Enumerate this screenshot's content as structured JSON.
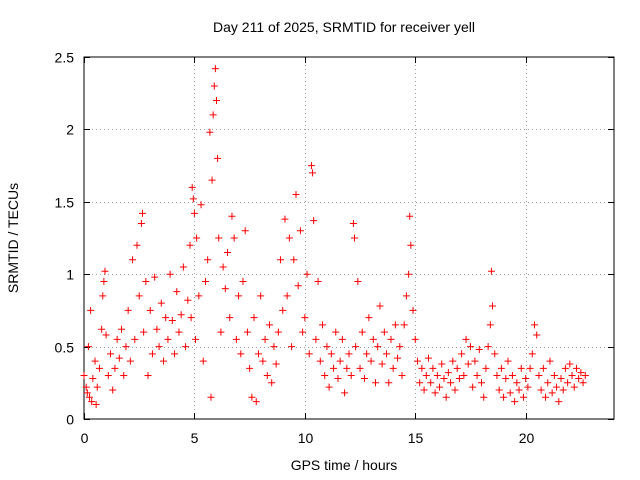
{
  "chart_data": {
    "type": "scatter",
    "title": "Day 211 of 2025, SRMTID for receiver yell",
    "xlabel": "GPS time / hours",
    "ylabel": "SRMTID / TECUs",
    "xlim": [
      0,
      24
    ],
    "ylim": [
      0,
      2.5
    ],
    "x_ticks": [
      0,
      5,
      10,
      15,
      20
    ],
    "x_tick_labels": [
      "0",
      "5",
      "10",
      "15",
      "20"
    ],
    "y_ticks": [
      0,
      0.5,
      1,
      1.5,
      2,
      2.5
    ],
    "y_tick_labels": [
      "0",
      "0.5",
      "1",
      "1.5",
      "2",
      "2.5"
    ],
    "grid": true,
    "marker": "plus",
    "color": "#ff0000",
    "series": [
      {
        "name": "SRMTID",
        "points": [
          [
            0.0,
            0.3
          ],
          [
            0.1,
            0.22
          ],
          [
            0.15,
            0.18
          ],
          [
            0.2,
            0.5
          ],
          [
            0.25,
            0.15
          ],
          [
            0.3,
            0.75
          ],
          [
            0.35,
            0.12
          ],
          [
            0.4,
            0.28
          ],
          [
            0.5,
            0.4
          ],
          [
            0.55,
            0.1
          ],
          [
            0.6,
            0.22
          ],
          [
            0.7,
            0.35
          ],
          [
            0.8,
            0.62
          ],
          [
            0.85,
            0.85
          ],
          [
            0.9,
            0.95
          ],
          [
            0.95,
            1.02
          ],
          [
            1.0,
            0.58
          ],
          [
            1.1,
            0.3
          ],
          [
            1.2,
            0.45
          ],
          [
            1.3,
            0.2
          ],
          [
            1.4,
            0.35
          ],
          [
            1.5,
            0.55
          ],
          [
            1.6,
            0.42
          ],
          [
            1.7,
            0.62
          ],
          [
            1.8,
            0.3
          ],
          [
            1.9,
            0.5
          ],
          [
            2.0,
            0.75
          ],
          [
            2.1,
            0.4
          ],
          [
            2.2,
            1.1
          ],
          [
            2.3,
            0.55
          ],
          [
            2.4,
            1.2
          ],
          [
            2.5,
            0.85
          ],
          [
            2.6,
            1.35
          ],
          [
            2.65,
            1.42
          ],
          [
            2.7,
            0.6
          ],
          [
            2.8,
            0.95
          ],
          [
            2.9,
            0.3
          ],
          [
            3.0,
            0.75
          ],
          [
            3.1,
            0.45
          ],
          [
            3.2,
            0.98
          ],
          [
            3.3,
            0.62
          ],
          [
            3.4,
            0.5
          ],
          [
            3.5,
            0.8
          ],
          [
            3.6,
            0.4
          ],
          [
            3.7,
            0.7
          ],
          [
            3.8,
            0.55
          ],
          [
            3.9,
            1.0
          ],
          [
            4.0,
            0.68
          ],
          [
            4.1,
            0.45
          ],
          [
            4.2,
            0.88
          ],
          [
            4.3,
            0.6
          ],
          [
            4.4,
            0.72
          ],
          [
            4.5,
            1.05
          ],
          [
            4.6,
            0.5
          ],
          [
            4.7,
            0.82
          ],
          [
            4.8,
            1.2
          ],
          [
            4.85,
            0.7
          ],
          [
            4.9,
            1.6
          ],
          [
            4.95,
            1.52
          ],
          [
            5.0,
            1.42
          ],
          [
            5.05,
            0.55
          ],
          [
            5.1,
            1.25
          ],
          [
            5.2,
            0.85
          ],
          [
            5.3,
            1.48
          ],
          [
            5.4,
            0.4
          ],
          [
            5.5,
            0.95
          ],
          [
            5.6,
            1.1
          ],
          [
            5.7,
            1.98
          ],
          [
            5.75,
            0.15
          ],
          [
            5.8,
            1.65
          ],
          [
            5.85,
            2.1
          ],
          [
            5.9,
            2.3
          ],
          [
            5.95,
            2.42
          ],
          [
            6.0,
            2.2
          ],
          [
            6.05,
            1.8
          ],
          [
            6.1,
            1.25
          ],
          [
            6.2,
            0.6
          ],
          [
            6.3,
            1.05
          ],
          [
            6.4,
            0.9
          ],
          [
            6.5,
            1.15
          ],
          [
            6.6,
            0.7
          ],
          [
            6.7,
            1.4
          ],
          [
            6.8,
            1.25
          ],
          [
            6.9,
            0.55
          ],
          [
            7.0,
            0.85
          ],
          [
            7.1,
            0.45
          ],
          [
            7.2,
            0.95
          ],
          [
            7.3,
            1.3
          ],
          [
            7.4,
            0.6
          ],
          [
            7.5,
            0.35
          ],
          [
            7.6,
            0.15
          ],
          [
            7.7,
            0.7
          ],
          [
            7.8,
            0.12
          ],
          [
            7.9,
            0.45
          ],
          [
            8.0,
            0.85
          ],
          [
            8.1,
            0.4
          ],
          [
            8.2,
            0.55
          ],
          [
            8.3,
            0.3
          ],
          [
            8.4,
            0.65
          ],
          [
            8.5,
            0.25
          ],
          [
            8.6,
            0.5
          ],
          [
            8.7,
            0.38
          ],
          [
            8.8,
            0.6
          ],
          [
            8.9,
            1.1
          ],
          [
            9.0,
            0.75
          ],
          [
            9.1,
            1.38
          ],
          [
            9.2,
            0.85
          ],
          [
            9.3,
            1.25
          ],
          [
            9.4,
            0.5
          ],
          [
            9.5,
            1.1
          ],
          [
            9.6,
            1.55
          ],
          [
            9.7,
            0.92
          ],
          [
            9.8,
            1.3
          ],
          [
            9.9,
            0.6
          ],
          [
            10.0,
            0.7
          ],
          [
            10.1,
            1.0
          ],
          [
            10.2,
            0.45
          ],
          [
            10.3,
            1.75
          ],
          [
            10.35,
            1.7
          ],
          [
            10.4,
            1.37
          ],
          [
            10.5,
            0.55
          ],
          [
            10.6,
            0.95
          ],
          [
            10.7,
            0.4
          ],
          [
            10.8,
            0.65
          ],
          [
            10.9,
            0.3
          ],
          [
            11.0,
            0.5
          ],
          [
            11.1,
            0.22
          ],
          [
            11.2,
            0.45
          ],
          [
            11.3,
            0.35
          ],
          [
            11.4,
            0.6
          ],
          [
            11.5,
            0.28
          ],
          [
            11.6,
            0.4
          ],
          [
            11.7,
            0.55
          ],
          [
            11.8,
            0.18
          ],
          [
            11.9,
            0.35
          ],
          [
            12.0,
            0.45
          ],
          [
            12.1,
            0.3
          ],
          [
            12.2,
            1.35
          ],
          [
            12.25,
            1.25
          ],
          [
            12.3,
            0.5
          ],
          [
            12.4,
            0.95
          ],
          [
            12.5,
            0.35
          ],
          [
            12.6,
            0.6
          ],
          [
            12.7,
            0.28
          ],
          [
            12.8,
            0.45
          ],
          [
            12.9,
            0.7
          ],
          [
            13.0,
            0.4
          ],
          [
            13.1,
            0.55
          ],
          [
            13.2,
            0.25
          ],
          [
            13.3,
            0.5
          ],
          [
            13.4,
            0.78
          ],
          [
            13.5,
            0.38
          ],
          [
            13.6,
            0.6
          ],
          [
            13.7,
            0.45
          ],
          [
            13.8,
            0.25
          ],
          [
            13.9,
            0.55
          ],
          [
            14.0,
            0.35
          ],
          [
            14.1,
            0.65
          ],
          [
            14.2,
            0.42
          ],
          [
            14.3,
            0.5
          ],
          [
            14.4,
            0.3
          ],
          [
            14.5,
            0.65
          ],
          [
            14.6,
            0.85
          ],
          [
            14.7,
            1.0
          ],
          [
            14.75,
            1.4
          ],
          [
            14.8,
            1.2
          ],
          [
            14.9,
            0.75
          ],
          [
            15.0,
            0.55
          ],
          [
            15.1,
            0.4
          ],
          [
            15.2,
            0.25
          ],
          [
            15.3,
            0.35
          ],
          [
            15.4,
            0.2
          ],
          [
            15.5,
            0.3
          ],
          [
            15.6,
            0.42
          ],
          [
            15.7,
            0.25
          ],
          [
            15.8,
            0.35
          ],
          [
            15.9,
            0.18
          ],
          [
            16.0,
            0.3
          ],
          [
            16.1,
            0.22
          ],
          [
            16.2,
            0.38
          ],
          [
            16.3,
            0.28
          ],
          [
            16.4,
            0.15
          ],
          [
            16.5,
            0.32
          ],
          [
            16.6,
            0.25
          ],
          [
            16.7,
            0.4
          ],
          [
            16.8,
            0.2
          ],
          [
            16.9,
            0.35
          ],
          [
            17.0,
            0.28
          ],
          [
            17.1,
            0.45
          ],
          [
            17.2,
            0.3
          ],
          [
            17.3,
            0.55
          ],
          [
            17.4,
            0.38
          ],
          [
            17.5,
            0.5
          ],
          [
            17.6,
            0.22
          ],
          [
            17.7,
            0.4
          ],
          [
            17.8,
            0.3
          ],
          [
            17.9,
            0.48
          ],
          [
            18.0,
            0.25
          ],
          [
            18.1,
            0.15
          ],
          [
            18.2,
            0.35
          ],
          [
            18.3,
            0.5
          ],
          [
            18.4,
            0.65
          ],
          [
            18.45,
            1.02
          ],
          [
            18.5,
            0.78
          ],
          [
            18.6,
            0.45
          ],
          [
            18.7,
            0.3
          ],
          [
            18.8,
            0.2
          ],
          [
            18.9,
            0.35
          ],
          [
            19.0,
            0.15
          ],
          [
            19.1,
            0.28
          ],
          [
            19.2,
            0.4
          ],
          [
            19.3,
            0.18
          ],
          [
            19.4,
            0.3
          ],
          [
            19.5,
            0.12
          ],
          [
            19.6,
            0.25
          ],
          [
            19.7,
            0.2
          ],
          [
            19.8,
            0.35
          ],
          [
            19.9,
            0.15
          ],
          [
            20.0,
            0.28
          ],
          [
            20.1,
            0.22
          ],
          [
            20.2,
            0.35
          ],
          [
            20.3,
            0.45
          ],
          [
            20.4,
            0.65
          ],
          [
            20.5,
            0.58
          ],
          [
            20.6,
            0.3
          ],
          [
            20.7,
            0.2
          ],
          [
            20.8,
            0.35
          ],
          [
            20.9,
            0.15
          ],
          [
            21.0,
            0.25
          ],
          [
            21.1,
            0.4
          ],
          [
            21.2,
            0.18
          ],
          [
            21.3,
            0.3
          ],
          [
            21.4,
            0.22
          ],
          [
            21.5,
            0.12
          ],
          [
            21.6,
            0.28
          ],
          [
            21.7,
            0.2
          ],
          [
            21.8,
            0.35
          ],
          [
            21.9,
            0.25
          ],
          [
            22.0,
            0.38
          ],
          [
            22.1,
            0.3
          ],
          [
            22.2,
            0.22
          ],
          [
            22.3,
            0.35
          ],
          [
            22.4,
            0.28
          ],
          [
            22.5,
            0.32
          ],
          [
            22.6,
            0.25
          ],
          [
            22.7,
            0.3
          ]
        ]
      }
    ]
  }
}
